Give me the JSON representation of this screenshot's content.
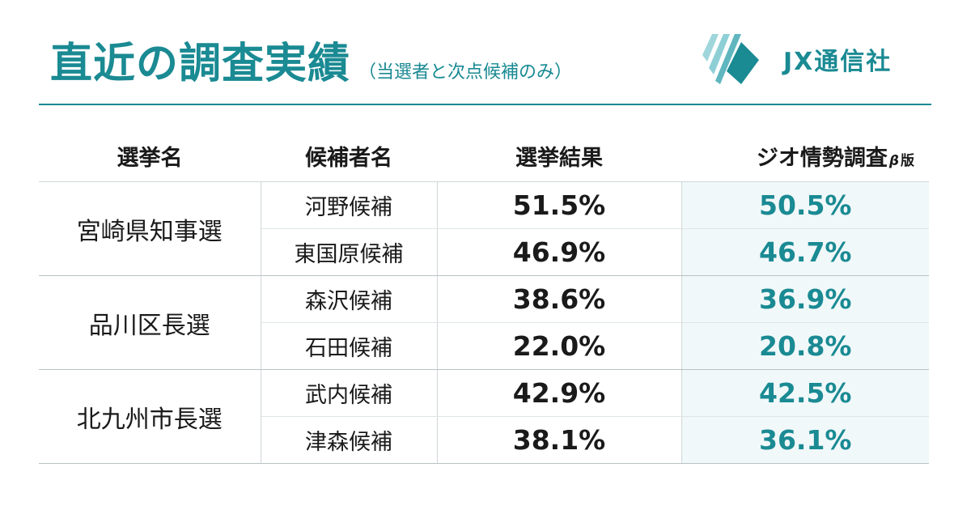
{
  "header": {
    "title": "直近の調査実績",
    "subtitle": "（当選者と次点候補のみ）",
    "brand": "JX通信社"
  },
  "table": {
    "headers": {
      "election": "選挙名",
      "candidate": "候補者名",
      "result": "選挙結果",
      "survey": "ジオ情勢調査",
      "survey_beta": "β",
      "survey_edition": "版"
    },
    "elections": [
      {
        "name": "宮崎県知事選",
        "candidates": [
          {
            "name": "河野候補",
            "result": "51.5%",
            "survey": "50.5%"
          },
          {
            "name": "東国原候補",
            "result": "46.9%",
            "survey": "46.7%"
          }
        ]
      },
      {
        "name": "品川区長選",
        "candidates": [
          {
            "name": "森沢候補",
            "result": "38.6%",
            "survey": "36.9%"
          },
          {
            "name": "石田候補",
            "result": "22.0%",
            "survey": "20.8%"
          }
        ]
      },
      {
        "name": "北九州市長選",
        "candidates": [
          {
            "name": "武内候補",
            "result": "42.9%",
            "survey": "42.5%"
          },
          {
            "name": "津森候補",
            "result": "38.1%",
            "survey": "36.1%"
          }
        ]
      }
    ]
  },
  "colors": {
    "accent": "#1a8a93",
    "logo_light": "#8ecfd6",
    "survey_bg": "#f1f8f9"
  }
}
